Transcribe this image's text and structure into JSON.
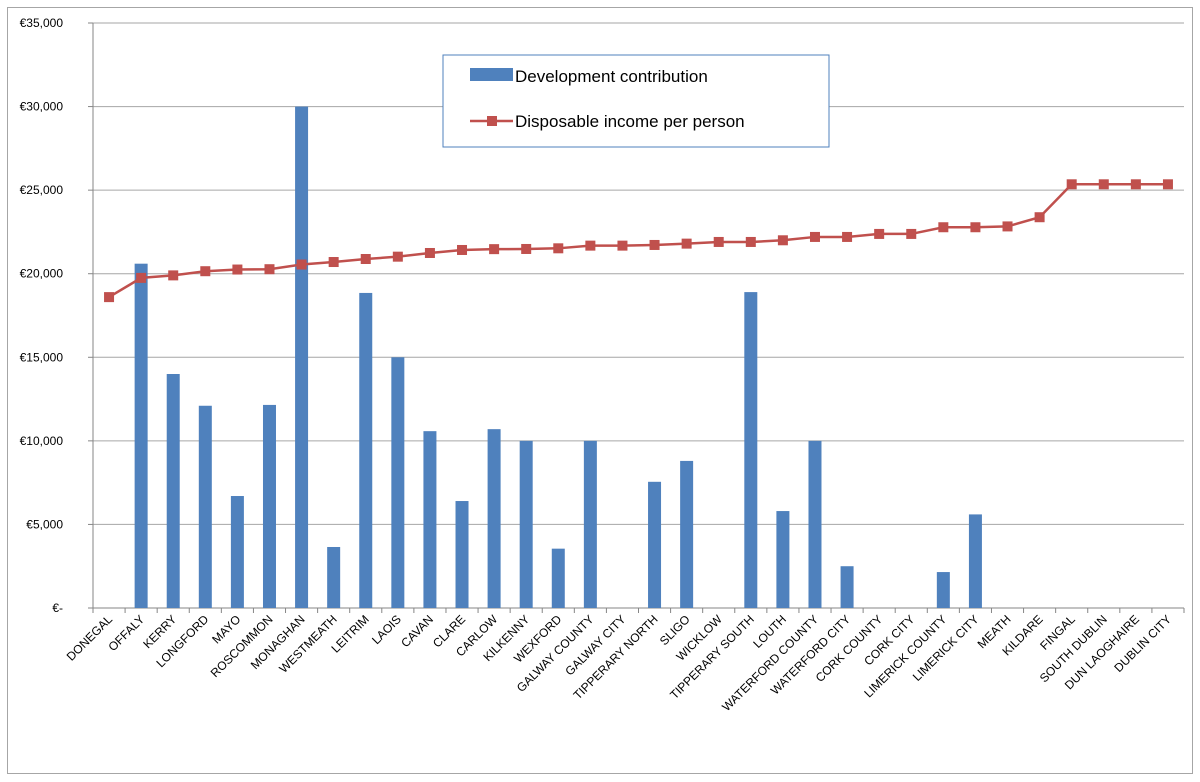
{
  "chart_data": {
    "type": "bar",
    "categories": [
      "DONEGAL",
      "OFFALY",
      "KERRY",
      "LONGFORD",
      "MAYO",
      "ROSCOMMON",
      "MONAGHAN",
      "WESTMEATH",
      "LEITRIM",
      "LAOIS",
      "CAVAN",
      "CLARE",
      "CARLOW",
      "KILKENNY",
      "WEXFORD",
      "GALWAY COUNTY",
      "GALWAY CITY",
      "TIPPERARY NORTH",
      "SLIGO",
      "WICKLOW",
      "TIPPERARY SOUTH",
      "LOUTH",
      "WATERFORD COUNTY",
      "WATERFORD CITY",
      "CORK COUNTY",
      "CORK CITY",
      "LIMERICK COUNTY",
      "LIMERICK CITY",
      "MEATH",
      "KILDARE",
      "FINGAL",
      "SOUTH DUBLIN",
      "DUN LAOGHAIRE",
      "DUBLIN CITY"
    ],
    "series": [
      {
        "name": "Development contribution",
        "type": "bar",
        "color": "#4f81bd",
        "values": [
          0,
          20600,
          14000,
          12100,
          6700,
          12150,
          30000,
          3650,
          18850,
          15000,
          10580,
          6400,
          10700,
          10000,
          3550,
          10000,
          0,
          7550,
          8800,
          0,
          18900,
          5800,
          10000,
          2500,
          0,
          0,
          2150,
          5600,
          0,
          0,
          0,
          0,
          0,
          0
        ]
      },
      {
        "name": "Disposable income per person",
        "type": "line",
        "color": "#c0504d",
        "values": [
          18600,
          19750,
          19900,
          20150,
          20250,
          20270,
          20550,
          20700,
          20880,
          21020,
          21240,
          21420,
          21470,
          21480,
          21520,
          21680,
          21680,
          21720,
          21800,
          21900,
          21900,
          22000,
          22200,
          22200,
          22380,
          22380,
          22780,
          22780,
          22830,
          23380,
          25350,
          25350,
          25350,
          25350
        ]
      }
    ],
    "y_ticks": [
      "€-",
      "€5,000",
      "€10,000",
      "€15,000",
      "€20,000",
      "€25,000",
      "€30,000",
      "€35,000"
    ],
    "ylim": [
      0,
      35000
    ],
    "grid": true,
    "legend_position": "top-center",
    "title": "",
    "xlabel": "",
    "ylabel": ""
  }
}
